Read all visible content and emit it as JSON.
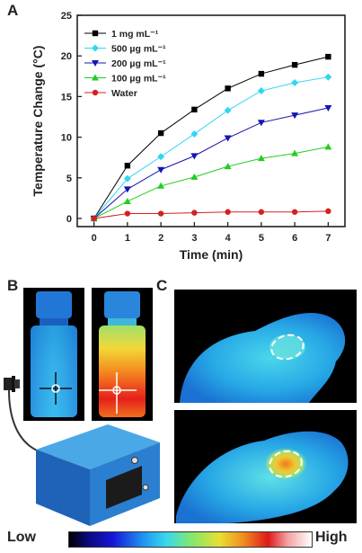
{
  "panels": {
    "a": "A",
    "b": "B",
    "c": "C"
  },
  "chart_data": {
    "type": "line",
    "xlabel": "Time (min)",
    "ylabel": "Temperature Change (°C)",
    "xlim": [
      -0.5,
      7.5
    ],
    "ylim": [
      -1,
      25
    ],
    "xticks": [
      0,
      1,
      2,
      3,
      4,
      5,
      6,
      7
    ],
    "yticks": [
      0,
      5,
      10,
      15,
      20,
      25
    ],
    "grid": false,
    "legend": "top-left",
    "x": [
      0,
      1,
      2,
      3,
      4,
      5,
      6,
      7
    ],
    "series": [
      {
        "name": "1 mg mL⁻¹",
        "color": "#000000",
        "marker": "square",
        "values": [
          0,
          6.5,
          10.5,
          13.4,
          16.0,
          17.8,
          18.9,
          19.9
        ]
      },
      {
        "name": "500 µg mL⁻¹",
        "color": "#33d6f0",
        "marker": "diamond",
        "values": [
          0,
          4.9,
          7.6,
          10.4,
          13.3,
          15.7,
          16.7,
          17.4
        ]
      },
      {
        "name": "200 µg mL⁻¹",
        "color": "#1515b0",
        "marker": "triangle-down",
        "values": [
          0,
          3.6,
          6.0,
          7.7,
          9.9,
          11.8,
          12.7,
          13.6
        ]
      },
      {
        "name": "100 µg mL⁻¹",
        "color": "#22cc22",
        "marker": "triangle-up",
        "values": [
          0,
          2.1,
          4.0,
          5.1,
          6.4,
          7.4,
          8.0,
          8.8
        ]
      },
      {
        "name": "Water",
        "color": "#d42020",
        "marker": "circle",
        "values": [
          0,
          0.6,
          0.6,
          0.7,
          0.8,
          0.8,
          0.8,
          0.9
        ]
      }
    ]
  },
  "colorbar": {
    "low": "Low",
    "high": "High"
  }
}
